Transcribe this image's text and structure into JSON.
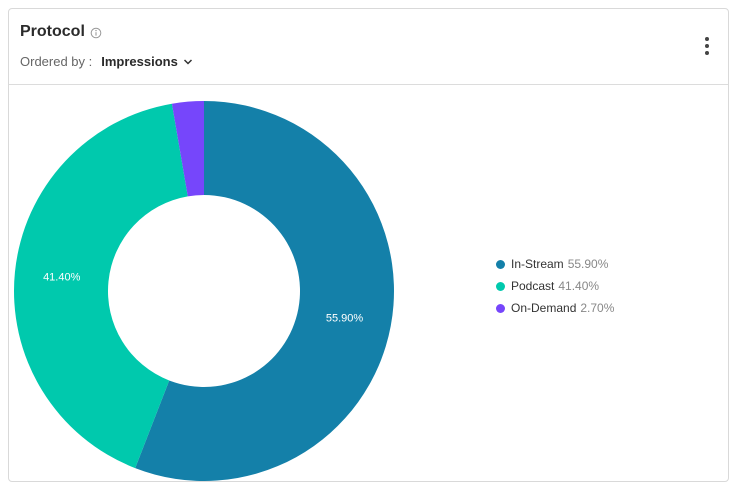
{
  "widget": {
    "title": "Protocol",
    "info_icon": "info-icon",
    "ordered_by_label": "Ordered by :",
    "ordered_by_value": "Impressions",
    "menu_icon": "more-vertical-icon"
  },
  "chart_data": {
    "type": "pie",
    "variant": "donut",
    "title": "",
    "categories": [
      "In-Stream",
      "Podcast",
      "On-Demand"
    ],
    "values": [
      55.9,
      41.4,
      2.7
    ],
    "labels": [
      "55.90%",
      "41.40%",
      ""
    ],
    "colors": [
      "#1480a9",
      "#00c9ad",
      "#7646fb"
    ],
    "legend_position": "right"
  },
  "legend": [
    {
      "name": "In-Stream",
      "pct": "55.90%",
      "color": "#1480a9"
    },
    {
      "name": "Podcast",
      "pct": "41.40%",
      "color": "#00c9ad"
    },
    {
      "name": "On-Demand",
      "pct": "2.70%",
      "color": "#7646fb"
    }
  ]
}
